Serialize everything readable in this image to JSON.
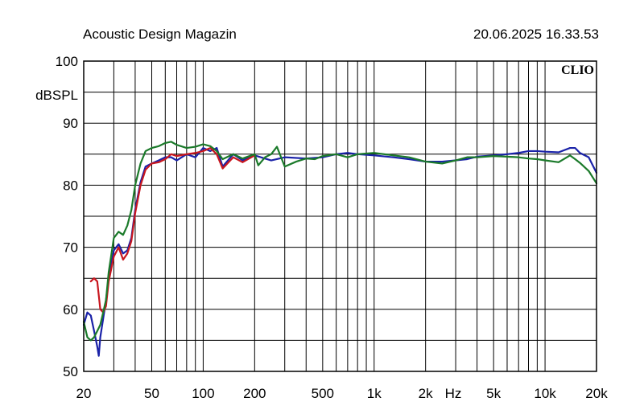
{
  "header": {
    "title": "Acoustic Design Magazin",
    "timestamp": "20.06.2025 16.33.53"
  },
  "brand": "CLIO",
  "chart_data": {
    "type": "line",
    "xscale": "log",
    "xlim": [
      20,
      20000
    ],
    "ylim": [
      50,
      100
    ],
    "ylabel": "dBSPL",
    "xunit_label": "Hz",
    "grid": true,
    "x_ticks": [
      {
        "value": 20,
        "label": "20"
      },
      {
        "value": 50,
        "label": "50"
      },
      {
        "value": 100,
        "label": "100"
      },
      {
        "value": 200,
        "label": "200"
      },
      {
        "value": 500,
        "label": "500"
      },
      {
        "value": 1000,
        "label": "1k"
      },
      {
        "value": 2000,
        "label": "2k"
      },
      {
        "value": 5000,
        "label": "5k"
      },
      {
        "value": 10000,
        "label": "10k"
      },
      {
        "value": 20000,
        "label": "20k"
      }
    ],
    "y_ticks": [
      {
        "value": 100,
        "label": "100"
      },
      {
        "value": 90,
        "label": "90"
      },
      {
        "value": 80,
        "label": "80"
      },
      {
        "value": 70,
        "label": "70"
      },
      {
        "value": 60,
        "label": "60"
      },
      {
        "value": 50,
        "label": "50"
      }
    ],
    "series": [
      {
        "color": "#1a22a8",
        "x": [
          20,
          21,
          22,
          23,
          24,
          24.5,
          25,
          26,
          27,
          28,
          30,
          32,
          34,
          36,
          38,
          40,
          43,
          46,
          50,
          55,
          60,
          65,
          70,
          80,
          90,
          100,
          110,
          120,
          130,
          150,
          170,
          200,
          250,
          300,
          400,
          500,
          600,
          700,
          800,
          1000,
          1300,
          1600,
          2000,
          2500,
          3000,
          3500,
          4000,
          5000,
          6000,
          7000,
          8000,
          9000,
          10000,
          12000,
          14000,
          15000,
          16000,
          18000,
          20000
        ],
        "y": [
          57.5,
          59.5,
          59,
          56.5,
          54,
          52.5,
          55.5,
          58.5,
          61.5,
          65,
          69.5,
          70.5,
          69,
          69.5,
          71.5,
          76,
          80.5,
          83,
          83.5,
          84,
          84.5,
          84.5,
          84,
          85,
          84.5,
          86,
          85.5,
          86,
          83,
          85,
          84,
          84.8,
          84,
          84.5,
          84.3,
          84.5,
          85,
          85.2,
          85,
          84.8,
          84.5,
          84.2,
          83.8,
          83.8,
          84,
          84.2,
          84.6,
          84.8,
          85,
          85.2,
          85.5,
          85.5,
          85.4,
          85.3,
          86,
          86,
          85.2,
          84.5,
          82
        ]
      },
      {
        "color": "#c8161e",
        "x": [
          22,
          23,
          24,
          25,
          26,
          27,
          28,
          30,
          32,
          34,
          36,
          38,
          40,
          43,
          46,
          50,
          55,
          60,
          65,
          70,
          80,
          90,
          100,
          110,
          120,
          130,
          150,
          170,
          200
        ],
        "y": [
          64.5,
          65,
          64.5,
          60,
          59.5,
          60.5,
          64.5,
          68.5,
          70,
          68,
          69,
          71,
          75.5,
          80,
          82.5,
          83.5,
          83.7,
          84.2,
          85,
          84.7,
          85,
          85.2,
          85.5,
          86,
          85,
          82.7,
          84.5,
          83.7,
          84.8
        ]
      },
      {
        "color": "#1b7a2a",
        "x": [
          20,
          21,
          22,
          23,
          24,
          25,
          26,
          27,
          28,
          30,
          32,
          34,
          36,
          38,
          40,
          43,
          46,
          50,
          55,
          60,
          65,
          70,
          80,
          90,
          100,
          110,
          120,
          130,
          150,
          170,
          200,
          210,
          230,
          250,
          270,
          300,
          350,
          400,
          450,
          500,
          600,
          700,
          800,
          1000,
          1300,
          1600,
          2000,
          2500,
          3000,
          3500,
          4000,
          5000,
          6000,
          7000,
          8000,
          9000,
          10000,
          12000,
          14000,
          15000,
          16000,
          18000,
          20000
        ],
        "y": [
          58,
          55.5,
          55,
          55.5,
          56.5,
          57.5,
          59.5,
          61.5,
          66,
          71.5,
          72.5,
          72,
          73.5,
          76,
          80,
          83.5,
          85.5,
          86,
          86.3,
          86.8,
          87,
          86.5,
          86,
          86.2,
          86.6,
          86.3,
          85.5,
          84.2,
          85,
          84.3,
          85,
          83.2,
          84.5,
          85,
          86.2,
          83,
          83.8,
          84.3,
          84.2,
          84.7,
          85,
          84.5,
          85,
          85.2,
          84.8,
          84.5,
          83.8,
          83.5,
          84,
          84.5,
          84.5,
          84.7,
          84.6,
          84.5,
          84.3,
          84.2,
          84,
          83.7,
          84.8,
          84.2,
          83.6,
          82.3,
          80.3
        ]
      }
    ]
  }
}
